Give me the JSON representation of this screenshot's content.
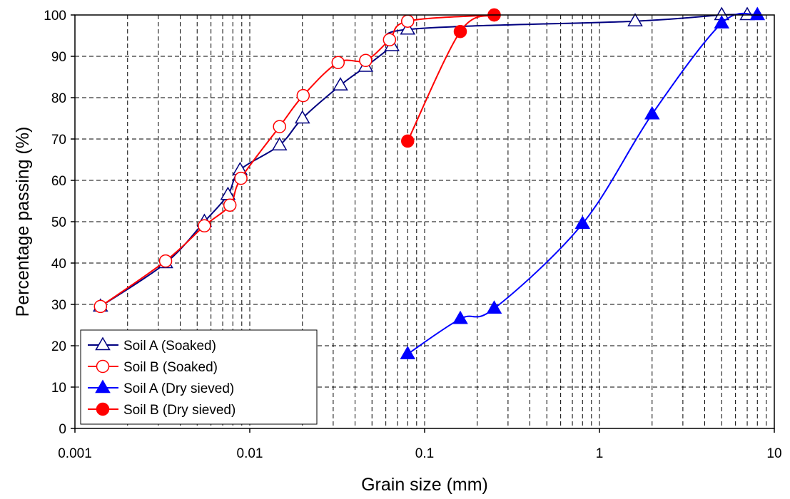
{
  "chart_data": {
    "type": "line",
    "title": "",
    "xlabel": "Grain size (mm)",
    "ylabel": "Percentage passing (%)",
    "xscale": "log",
    "xlim": [
      0.001,
      10
    ],
    "ylim": [
      0,
      100
    ],
    "grid": true,
    "legend_position": "bottom-left",
    "x_tick_labels": [
      "0.001",
      "0.01",
      "0.1",
      "1",
      "10"
    ],
    "y_tick_labels": [
      "0",
      "10",
      "20",
      "30",
      "40",
      "50",
      "60",
      "70",
      "80",
      "90",
      "100"
    ],
    "series": [
      {
        "name": "Soil A (Soaked)",
        "color": "#000080",
        "marker": "triangle-open",
        "x": [
          0.0014,
          0.0033,
          0.0055,
          0.0075,
          0.0088,
          0.0148,
          0.02,
          0.033,
          0.046,
          0.065,
          0.08,
          1.6,
          5.0,
          7.0
        ],
        "y": [
          29.5,
          40.0,
          50.0,
          56.5,
          62.5,
          68.5,
          75.0,
          83.0,
          87.5,
          92.5,
          96.5,
          98.5,
          100,
          100
        ]
      },
      {
        "name": "Soil B (Soaked)",
        "color": "#ff0000",
        "marker": "circle-open",
        "x": [
          0.0014,
          0.0033,
          0.0055,
          0.0077,
          0.0089,
          0.0148,
          0.0202,
          0.032,
          0.046,
          0.063,
          0.08,
          0.25
        ],
        "y": [
          29.5,
          40.5,
          49.0,
          54.0,
          60.5,
          73.0,
          80.5,
          88.5,
          89.0,
          94.0,
          98.5,
          100
        ]
      },
      {
        "name": "Soil A (Dry sieved)",
        "color": "#0000ff",
        "marker": "triangle-filled",
        "x": [
          0.08,
          0.16,
          0.25,
          0.8,
          2.0,
          5.0,
          8.0
        ],
        "y": [
          18.0,
          26.5,
          29.0,
          49.5,
          76.0,
          98.0,
          100
        ]
      },
      {
        "name": "Soil B (Dry sieved)",
        "color": "#ff0000",
        "marker": "circle-filled",
        "x": [
          0.08,
          0.16,
          0.25
        ],
        "y": [
          69.5,
          96.0,
          100
        ]
      }
    ]
  }
}
